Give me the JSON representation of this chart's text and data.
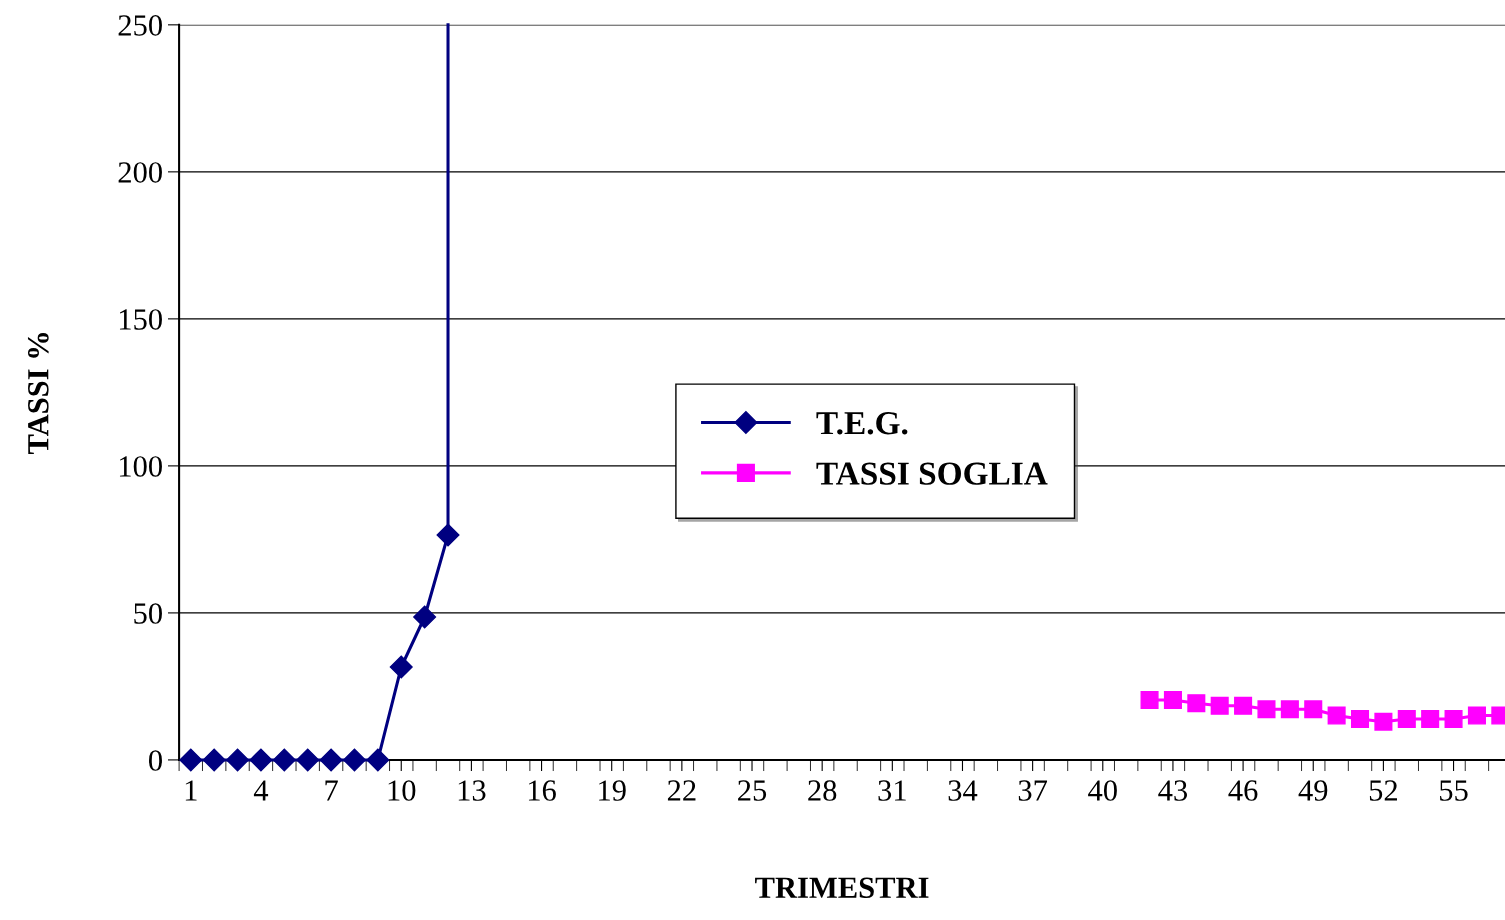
{
  "chart_data": {
    "type": "line",
    "xlabel": "TRIMESTRI",
    "ylabel": "TASSI %",
    "xlim": [
      0.5,
      57.2
    ],
    "ylim": [
      0,
      250
    ],
    "yticks": [
      0,
      50,
      100,
      150,
      200,
      250
    ],
    "xticks": [
      1,
      4,
      7,
      10,
      13,
      16,
      19,
      22,
      25,
      28,
      31,
      34,
      37,
      40,
      43,
      46,
      49,
      52,
      55
    ],
    "grid": "y",
    "legend": "center",
    "series": [
      {
        "name": "T.E.G.",
        "color": "#000080",
        "marker": "diamond",
        "x": [
          1,
          2,
          3,
          4,
          5,
          6,
          7,
          8,
          9,
          10,
          11,
          12
        ],
        "values": [
          0,
          0,
          0,
          0,
          0,
          0,
          0,
          0,
          0,
          31.6,
          48.6,
          76.5
        ]
      },
      {
        "color": "#000080",
        "marker": "none",
        "x": [
          12,
          12
        ],
        "values": [
          76.5,
          250
        ]
      },
      {
        "name": "TASSI SOGLIA",
        "color": "#ff00ff",
        "marker": "square",
        "x": [
          42,
          43,
          44,
          45,
          46,
          47,
          48,
          49,
          50,
          51,
          52,
          53,
          54,
          55,
          56,
          57
        ],
        "values": [
          20.4,
          20.4,
          19.3,
          18.4,
          18.4,
          17.2,
          17.2,
          17.2,
          15.1,
          13.9,
          13.0,
          13.9,
          13.9,
          13.9,
          15.1,
          15.1
        ]
      }
    ]
  }
}
